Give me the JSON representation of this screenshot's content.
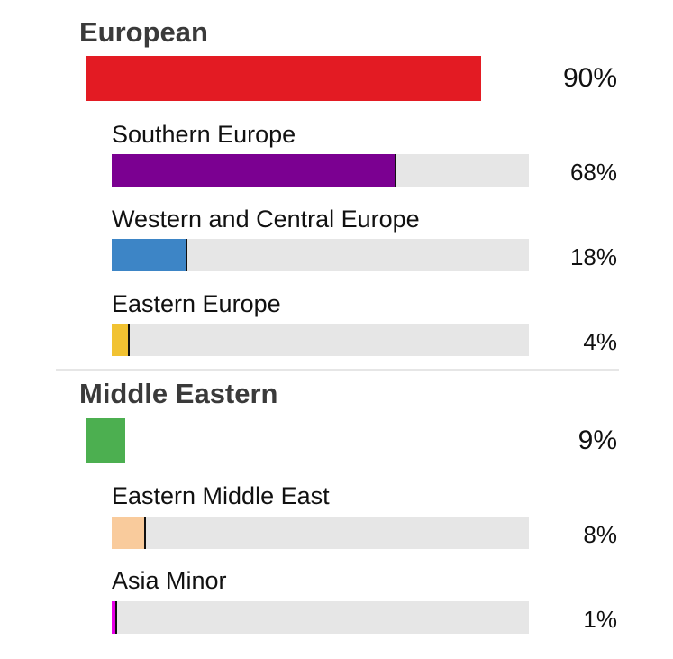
{
  "chart_data": {
    "type": "bar",
    "groups": [
      {
        "name": "European",
        "value": 90,
        "value_label": "90%",
        "color": "#e31b23",
        "subgroups": [
          {
            "name": "Southern Europe",
            "value": 68,
            "value_label": "68%",
            "color": "#7b0091"
          },
          {
            "name": "Western and Central Europe",
            "value": 18,
            "value_label": "18%",
            "color": "#3d85c6"
          },
          {
            "name": "Eastern Europe",
            "value": 4,
            "value_label": "4%",
            "color": "#f1c232"
          }
        ]
      },
      {
        "name": "Middle Eastern",
        "value": 9,
        "value_label": "9%",
        "color": "#4caf50",
        "subgroups": [
          {
            "name": "Eastern Middle East",
            "value": 8,
            "value_label": "8%",
            "color": "#f9cb9c"
          },
          {
            "name": "Asia Minor",
            "value": 1,
            "value_label": "1%",
            "color": "#e600e6"
          }
        ]
      }
    ],
    "scale_max": 100
  }
}
